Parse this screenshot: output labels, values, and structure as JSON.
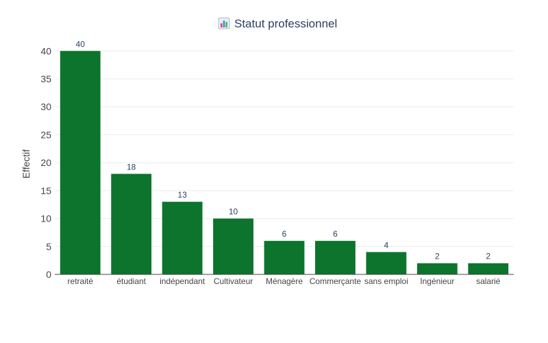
{
  "chart_data": {
    "type": "bar",
    "title": "Statut professionnel",
    "title_icon": "bar-chart-emoji-icon",
    "xlabel": "",
    "ylabel": "Effectif",
    "categories": [
      "retraité",
      "étudiant",
      "indépendant",
      "Cultivateur",
      "Ménagère",
      "Commerçante",
      "sans emploi",
      "Ingénieur",
      "salarié"
    ],
    "values": [
      40,
      18,
      13,
      10,
      6,
      6,
      4,
      2,
      2
    ],
    "ylim": [
      0,
      42
    ],
    "yticks": [
      0,
      5,
      10,
      15,
      20,
      25,
      30,
      35,
      40
    ],
    "grid": true,
    "legend": "none",
    "bar_color": "#0c742c",
    "text_color": "#2a3f5f",
    "grid_color": "#ebebeb",
    "axis_color": "#444444"
  }
}
